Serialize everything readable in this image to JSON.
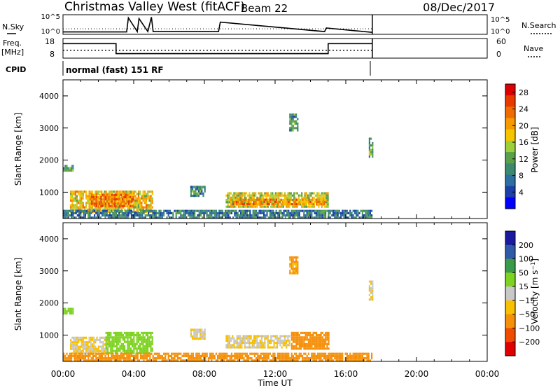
{
  "header": {
    "station": "Christmas Valley West (fitACF)",
    "beam": "Beam 22",
    "date": "08/Dec/2017"
  },
  "top_panels": {
    "nsky_label": "N.Sky",
    "nsky_ticks": [
      "10^5",
      "10^0"
    ],
    "nsearch_label": "N.Search",
    "nsearch_ticks": [
      "10^5",
      "10^0"
    ],
    "freq_label_1": "Freq.",
    "freq_label_2": "[MHz]",
    "freq_ticks": [
      "18",
      "8"
    ],
    "nave_label": "Nave",
    "nave_ticks": [
      "60",
      "0"
    ],
    "cpid_label": "CPID",
    "cpid_value": "normal (fast) 151 RF"
  },
  "colors": {
    "power": [
      "#0000ff",
      "#1d3fa8",
      "#2c6fa0",
      "#3b8a6e",
      "#5aa04a",
      "#9ccf3a",
      "#f7c400",
      "#f59a00",
      "#f06c00",
      "#e83a00",
      "#dd0000"
    ],
    "velocity": {
      "m200": "#e00000",
      "m100": "#f04b00",
      "m50": "#f5900a",
      "m15": "#f7c000",
      "z": "#c8c8c8",
      "p15": "#7ed321",
      "p50": "#3b9a4a",
      "p100": "#2f5aa8",
      "p200": "#1a1aa0"
    }
  },
  "chart_data": [
    {
      "type": "line",
      "title": "N.Sky",
      "xlabel": "Time UT",
      "xlim": [
        "00:00",
        "24:00"
      ],
      "x_ticks": [
        "00:00",
        "04:00",
        "08:00",
        "12:00",
        "16:00",
        "20:00",
        "00:00"
      ],
      "series": [
        {
          "name": "N.Sky",
          "x": [
            0.0,
            3.6,
            3.7,
            4.2,
            4.3,
            4.8,
            5.0,
            5.1,
            8.8,
            8.9,
            14.8,
            14.9,
            17.5
          ],
          "y": [
            0.6,
            0.6,
            4.2,
            0.7,
            4.0,
            0.7,
            4.4,
            0.7,
            0.7,
            3.1,
            0.7,
            1.6,
            0.5
          ]
        },
        {
          "name": "N.Search",
          "x": [
            0.0,
            17.5
          ],
          "y": [
            0.2,
            0.2
          ]
        }
      ],
      "ylim_label": [
        "10^0",
        "10^5"
      ]
    },
    {
      "type": "line",
      "title": "Freq.",
      "series": [
        {
          "name": "Freq. [MHz]",
          "x": [
            0.0,
            3.0,
            3.0,
            15.0,
            15.0,
            17.5
          ],
          "y": [
            15.4,
            15.4,
            10.3,
            10.3,
            15.4,
            15.4
          ]
        },
        {
          "name": "Nave",
          "x": [
            0.0,
            17.5
          ],
          "y": [
            24,
            24
          ]
        }
      ],
      "ylim": [
        8,
        18
      ],
      "ylim_right": [
        0,
        60
      ]
    },
    {
      "type": "heatmap",
      "title": "Power",
      "ylabel": "Slant Range [km]",
      "colorbar_label": "Power [dB]",
      "colorbar_ticks": [
        "28",
        "24",
        "20",
        "16",
        "12",
        "8",
        "4"
      ],
      "colorbar_range": [
        0,
        30
      ],
      "y_ticks": [
        "4000",
        "3000",
        "2000",
        "1000"
      ],
      "ylim": [
        180,
        4500
      ],
      "xlim_hours": [
        0,
        24
      ],
      "regions": [
        {
          "t0": 0.0,
          "t1": 0.6,
          "r0": 1650,
          "r1": 1850,
          "v": 10
        },
        {
          "t0": 0.4,
          "t1": 5.1,
          "r0": 420,
          "r1": 1050,
          "v": 18
        },
        {
          "t0": 1.5,
          "t1": 4.0,
          "r0": 550,
          "r1": 950,
          "v": 22
        },
        {
          "t0": 7.2,
          "t1": 8.0,
          "r0": 900,
          "r1": 1200,
          "v": 9
        },
        {
          "t0": 9.2,
          "t1": 15.0,
          "r0": 550,
          "r1": 1000,
          "v": 16
        },
        {
          "t0": 9.6,
          "t1": 14.8,
          "r0": 600,
          "r1": 800,
          "v": 21
        },
        {
          "t0": 12.8,
          "t1": 13.3,
          "r0": 2900,
          "r1": 3450,
          "v": 10
        },
        {
          "t0": 17.3,
          "t1": 17.5,
          "r0": 2100,
          "r1": 2700,
          "v": 12
        },
        {
          "t0": 0.0,
          "t1": 17.5,
          "r0": 180,
          "r1": 450,
          "v": 8
        }
      ]
    },
    {
      "type": "heatmap",
      "title": "Velocity",
      "ylabel": "Slant Range [km]",
      "xlabel": "Time UT",
      "colorbar_label": "Velocity [m s^-1]",
      "colorbar_ticks": [
        "200",
        "100",
        "50",
        "15",
        "−15",
        "−50",
        "−100",
        "−200"
      ],
      "y_ticks": [
        "4000",
        "3000",
        "2000",
        "1000"
      ],
      "ylim": [
        180,
        4500
      ],
      "xlim_hours": [
        0,
        24
      ],
      "regions": [
        {
          "t0": 0.0,
          "t1": 0.6,
          "r0": 1650,
          "r1": 1850,
          "v": 30
        },
        {
          "t0": 0.4,
          "t1": 2.5,
          "r0": 450,
          "r1": 950,
          "v": 0
        },
        {
          "t0": 2.4,
          "t1": 5.1,
          "r0": 450,
          "r1": 1100,
          "v": 35
        },
        {
          "t0": 7.2,
          "t1": 8.0,
          "r0": 900,
          "r1": 1200,
          "v": 0
        },
        {
          "t0": 9.2,
          "t1": 12.8,
          "r0": 600,
          "r1": 1000,
          "v": 0
        },
        {
          "t0": 12.9,
          "t1": 15.0,
          "r0": 600,
          "r1": 1100,
          "v": -30
        },
        {
          "t0": 12.8,
          "t1": 13.3,
          "r0": 2900,
          "r1": 3450,
          "v": -20
        },
        {
          "t0": 17.3,
          "t1": 17.5,
          "r0": 2100,
          "r1": 2700,
          "v": 0
        },
        {
          "t0": 0.0,
          "t1": 17.5,
          "r0": 180,
          "r1": 450,
          "v": -30
        }
      ]
    }
  ]
}
